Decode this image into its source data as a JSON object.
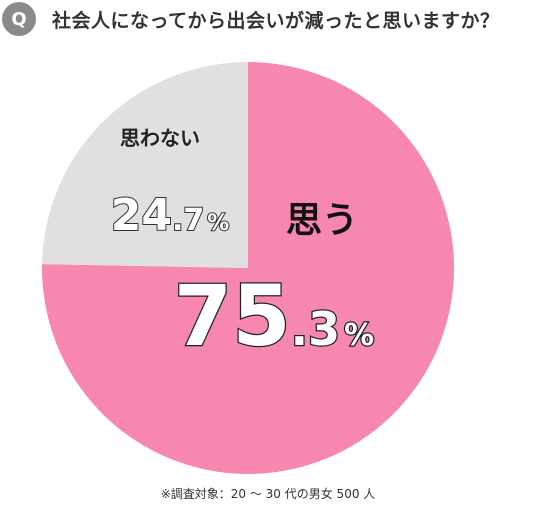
{
  "question": {
    "badge": "Q",
    "text": "社会人になってから出会いが減ったと思いますか？"
  },
  "chart_data": {
    "type": "pie",
    "slices": [
      {
        "label": "思う",
        "value": 75.3,
        "value_int": "75",
        "value_dec": ".3",
        "unit": "%",
        "color": "#f786b0"
      },
      {
        "label": "思わない",
        "value": 24.7,
        "value_int": "24",
        "value_dec": ".7",
        "unit": "%",
        "color": "#e0e0e0"
      }
    ]
  },
  "footnote": "※調査対象：20 〜 30 代の男女 500 人"
}
